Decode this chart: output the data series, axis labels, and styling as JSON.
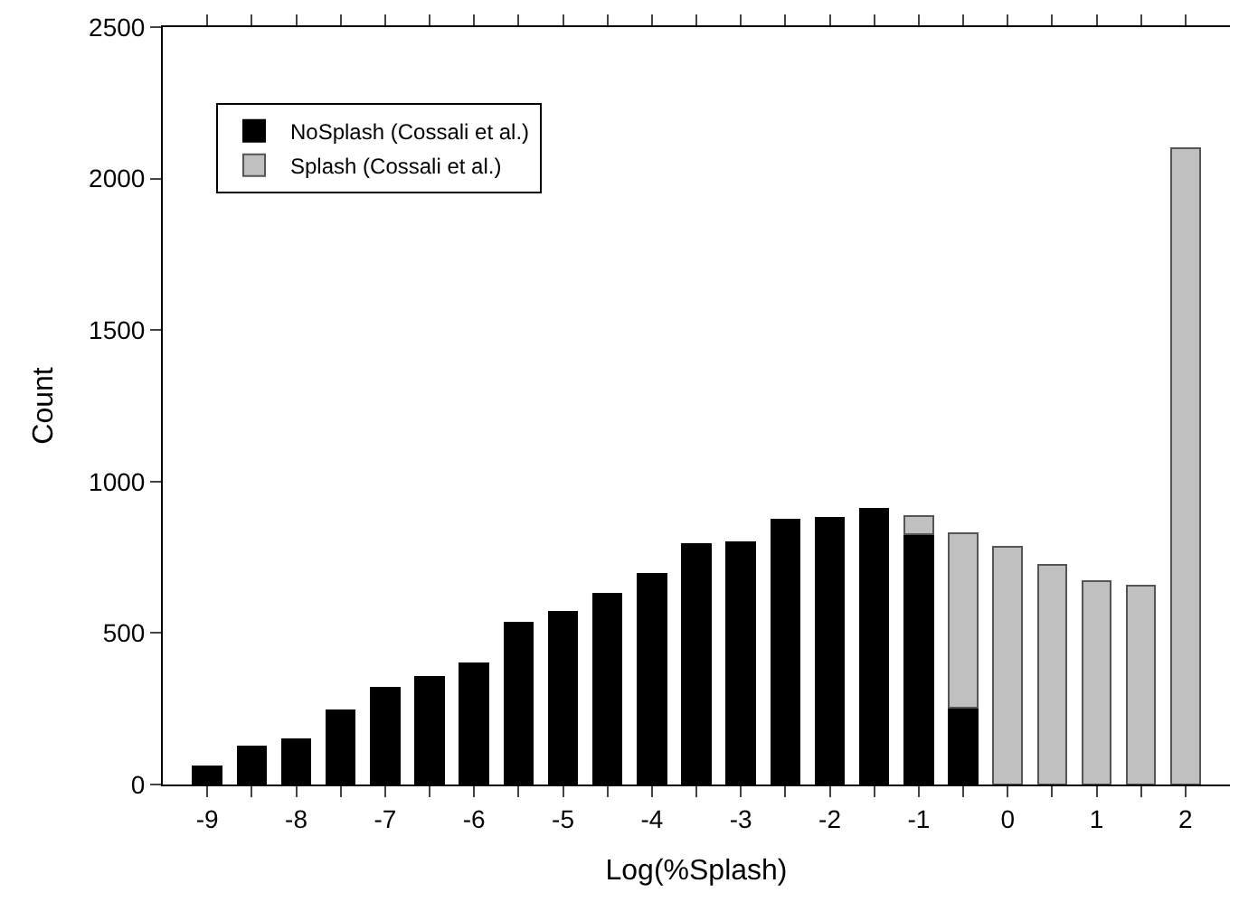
{
  "chart_data": {
    "type": "bar",
    "stacked": true,
    "xlabel": "Log(%Splash)",
    "ylabel": "Count",
    "x": [
      -9,
      -8.5,
      -8,
      -7.5,
      -7,
      -6.5,
      -6,
      -5.5,
      -5,
      -4.5,
      -4,
      -3.5,
      -3,
      -2.5,
      -2,
      -1.5,
      -1,
      -0.5,
      0,
      0.5,
      1,
      1.5,
      2
    ],
    "series": [
      {
        "name": "NoSplash (Cossali et al.)",
        "color": "#000000",
        "values": [
          60,
          125,
          150,
          245,
          320,
          355,
          400,
          535,
          570,
          630,
          695,
          795,
          800,
          875,
          880,
          910,
          825,
          255,
          null,
          null,
          null,
          null,
          null
        ]
      },
      {
        "name": "Splash (Cossali et al.)",
        "color": "#c0c0c0",
        "values": [
          null,
          null,
          null,
          null,
          null,
          null,
          null,
          null,
          null,
          null,
          null,
          null,
          null,
          null,
          null,
          null,
          60,
          575,
          785,
          725,
          670,
          655,
          2100
        ]
      }
    ],
    "xlim": [
      -9.5,
      2.5
    ],
    "ylim": [
      0,
      2500
    ],
    "xticks": [
      -9,
      {
        "value": -8.5,
        "label": null
      },
      -8,
      {
        "value": -7.5,
        "label": null
      },
      -7,
      {
        "value": -6.5,
        "label": null
      },
      -6,
      {
        "value": -5.5,
        "label": null
      },
      -5,
      {
        "value": -4.5,
        "label": null
      },
      -4,
      {
        "value": -3.5,
        "label": null
      },
      -3,
      {
        "value": -2.5,
        "label": null
      },
      -2,
      {
        "value": -1.5,
        "label": null
      },
      -1,
      {
        "value": -0.5,
        "label": null
      },
      0,
      {
        "value": 0.5,
        "label": null
      },
      1,
      {
        "value": 1.5,
        "label": null
      },
      2
    ],
    "yticks": [
      0,
      500,
      1000,
      1500,
      2000,
      2500
    ],
    "legend": "top left"
  }
}
